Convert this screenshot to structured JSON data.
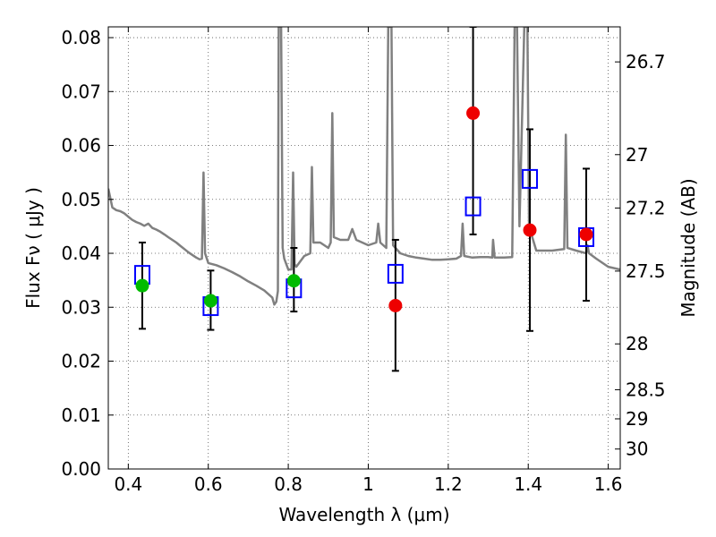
{
  "chart_data": {
    "type": "scatter",
    "xlabel": "Wavelength  λ (μm)",
    "ylabel": "Flux  Fν  ( μJy )",
    "y2label": "Magnitude (AB)",
    "xlim": [
      0.35,
      1.63
    ],
    "ylim": [
      0.0,
      0.082
    ],
    "grid": true,
    "x_ticks": [
      0.4,
      0.6,
      0.8,
      1.0,
      1.2,
      1.4,
      1.6
    ],
    "x_tick_labels": [
      "0.4",
      "0.6",
      "0.8",
      "1",
      "1.2",
      "1.4",
      "1.6"
    ],
    "y_ticks": [
      0.0,
      0.01,
      0.02,
      0.03,
      0.04,
      0.05,
      0.06,
      0.07,
      0.08
    ],
    "y_tick_labels": [
      "0.00",
      "0.01",
      "0.02",
      "0.03",
      "0.04",
      "0.05",
      "0.06",
      "0.07",
      "0.08"
    ],
    "y2_ticks": [
      {
        "flux": 0.0755,
        "label": "26.7"
      },
      {
        "flux": 0.0583,
        "label": "27"
      },
      {
        "flux": 0.0484,
        "label": "27.2"
      },
      {
        "flux": 0.0367,
        "label": "27.5"
      },
      {
        "flux": 0.0232,
        "label": "28"
      },
      {
        "flux": 0.0147,
        "label": "28.5"
      },
      {
        "flux": 0.0093,
        "label": "29"
      },
      {
        "flux": 0.0037,
        "label": "30"
      }
    ],
    "series": [
      {
        "marker": "line",
        "color": "#808080",
        "points": [
          [
            0.35,
            0.052
          ],
          [
            0.36,
            0.0485
          ],
          [
            0.37,
            0.048
          ],
          [
            0.38,
            0.0478
          ],
          [
            0.39,
            0.0474
          ],
          [
            0.4,
            0.0468
          ],
          [
            0.41,
            0.0462
          ],
          [
            0.42,
            0.0458
          ],
          [
            0.43,
            0.0455
          ],
          [
            0.44,
            0.0451
          ],
          [
            0.45,
            0.0455
          ],
          [
            0.46,
            0.0447
          ],
          [
            0.47,
            0.0444
          ],
          [
            0.48,
            0.044
          ],
          [
            0.49,
            0.0435
          ],
          [
            0.5,
            0.043
          ],
          [
            0.51,
            0.0425
          ],
          [
            0.52,
            0.042
          ],
          [
            0.53,
            0.0414
          ],
          [
            0.54,
            0.0408
          ],
          [
            0.55,
            0.0402
          ],
          [
            0.56,
            0.0397
          ],
          [
            0.57,
            0.0392
          ],
          [
            0.578,
            0.0389
          ],
          [
            0.584,
            0.039
          ],
          [
            0.588,
            0.055
          ],
          [
            0.592,
            0.04
          ],
          [
            0.6,
            0.0382
          ],
          [
            0.62,
            0.0378
          ],
          [
            0.64,
            0.0372
          ],
          [
            0.66,
            0.0365
          ],
          [
            0.68,
            0.0357
          ],
          [
            0.7,
            0.0348
          ],
          [
            0.72,
            0.034
          ],
          [
            0.74,
            0.0331
          ],
          [
            0.76,
            0.0318
          ],
          [
            0.765,
            0.0305
          ],
          [
            0.77,
            0.031
          ],
          [
            0.774,
            0.033
          ],
          [
            0.776,
            0.082
          ],
          [
            0.782,
            0.082
          ],
          [
            0.786,
            0.041
          ],
          [
            0.79,
            0.039
          ],
          [
            0.8,
            0.037
          ],
          [
            0.808,
            0.037
          ],
          [
            0.812,
            0.055
          ],
          [
            0.816,
            0.038
          ],
          [
            0.82,
            0.0375
          ],
          [
            0.84,
            0.0395
          ],
          [
            0.855,
            0.04
          ],
          [
            0.859,
            0.056
          ],
          [
            0.863,
            0.042
          ],
          [
            0.88,
            0.042
          ],
          [
            0.9,
            0.041
          ],
          [
            0.906,
            0.042
          ],
          [
            0.91,
            0.066
          ],
          [
            0.914,
            0.043
          ],
          [
            0.93,
            0.0425
          ],
          [
            0.95,
            0.0425
          ],
          [
            0.96,
            0.0445
          ],
          [
            0.97,
            0.0425
          ],
          [
            1.0,
            0.0415
          ],
          [
            1.02,
            0.042
          ],
          [
            1.025,
            0.0455
          ],
          [
            1.03,
            0.042
          ],
          [
            1.045,
            0.041
          ],
          [
            1.05,
            0.082
          ],
          [
            1.058,
            0.082
          ],
          [
            1.062,
            0.0415
          ],
          [
            1.08,
            0.04
          ],
          [
            1.1,
            0.0395
          ],
          [
            1.12,
            0.0392
          ],
          [
            1.14,
            0.039
          ],
          [
            1.16,
            0.0388
          ],
          [
            1.18,
            0.0388
          ],
          [
            1.2,
            0.0389
          ],
          [
            1.22,
            0.039
          ],
          [
            1.232,
            0.0395
          ],
          [
            1.236,
            0.0455
          ],
          [
            1.24,
            0.0395
          ],
          [
            1.26,
            0.0392
          ],
          [
            1.28,
            0.0393
          ],
          [
            1.3,
            0.0393
          ],
          [
            1.31,
            0.0392
          ],
          [
            1.312,
            0.0425
          ],
          [
            1.316,
            0.0392
          ],
          [
            1.34,
            0.0392
          ],
          [
            1.36,
            0.0393
          ],
          [
            1.366,
            0.082
          ],
          [
            1.372,
            0.082
          ],
          [
            1.378,
            0.045
          ],
          [
            1.39,
            0.082
          ],
          [
            1.398,
            0.082
          ],
          [
            1.402,
            0.045
          ],
          [
            1.42,
            0.0405
          ],
          [
            1.46,
            0.0405
          ],
          [
            1.49,
            0.0408
          ],
          [
            1.494,
            0.062
          ],
          [
            1.498,
            0.041
          ],
          [
            1.52,
            0.0405
          ],
          [
            1.545,
            0.04
          ],
          [
            1.548,
            0.0415
          ],
          [
            1.552,
            0.04
          ],
          [
            1.57,
            0.039
          ],
          [
            1.6,
            0.0375
          ],
          [
            1.63,
            0.037
          ]
        ]
      },
      {
        "marker": "open-square",
        "color": "#0000ff",
        "points": [
          [
            0.435,
            0.036
          ],
          [
            0.606,
            0.0302
          ],
          [
            0.814,
            0.0335
          ],
          [
            1.068,
            0.0362
          ],
          [
            1.262,
            0.0487
          ],
          [
            1.404,
            0.0538
          ],
          [
            1.545,
            0.043
          ]
        ]
      },
      {
        "marker": "filled-circle",
        "color": "#00bb00",
        "points": [
          [
            0.435,
            0.034
          ],
          [
            0.606,
            0.0312
          ],
          [
            0.814,
            0.0349
          ]
        ]
      },
      {
        "marker": "filled-circle",
        "color": "#ee0000",
        "points": [
          [
            1.068,
            0.0303
          ],
          [
            1.262,
            0.066
          ],
          [
            1.404,
            0.0443
          ],
          [
            1.545,
            0.0435
          ]
        ]
      },
      {
        "marker": "errorbar",
        "color": "#000000",
        "bars": [
          {
            "x": 0.435,
            "low": 0.026,
            "high": 0.042
          },
          {
            "x": 0.606,
            "low": 0.0258,
            "high": 0.0368
          },
          {
            "x": 0.814,
            "low": 0.0292,
            "high": 0.041
          },
          {
            "x": 1.068,
            "low": 0.0182,
            "high": 0.0425
          },
          {
            "x": 1.262,
            "low": 0.0435,
            "high": 0.082
          },
          {
            "x": 1.404,
            "low": 0.0256,
            "high": 0.063
          },
          {
            "x": 1.545,
            "low": 0.0312,
            "high": 0.0557
          }
        ]
      }
    ]
  }
}
